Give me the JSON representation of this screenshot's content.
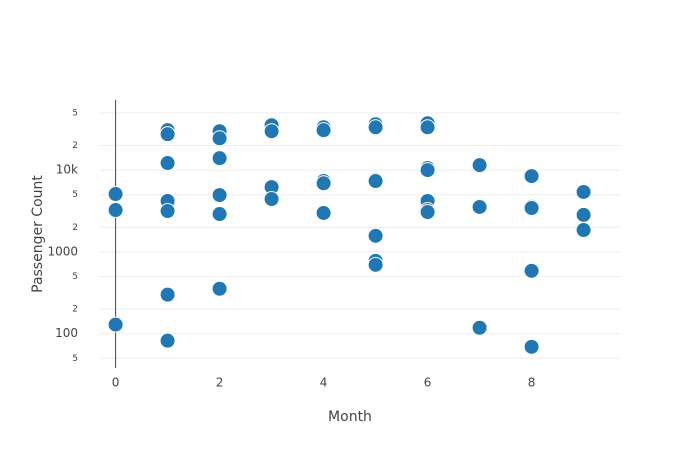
{
  "chart_data": {
    "type": "scatter",
    "xlabel": "Month",
    "ylabel": "Passenger Count",
    "color": "#1f77b4",
    "ylog": true,
    "ygrid": true,
    "xzeroline": true,
    "xlim": [
      -0.3,
      9.7
    ],
    "ylim": [
      38,
      72000
    ],
    "xticks": [
      0,
      2,
      4,
      6,
      8
    ],
    "yticks": [
      {
        "value": 50,
        "label": "5"
      },
      100,
      {
        "value": 200,
        "label": "2"
      },
      {
        "value": 500,
        "label": "5"
      },
      1000,
      {
        "value": 2000,
        "label": "2"
      },
      {
        "value": 5000,
        "label": "5"
      },
      {
        "value": 10000,
        "label": "10k"
      },
      {
        "value": 20000,
        "label": "2"
      },
      {
        "value": 50000,
        "label": "5"
      }
    ],
    "x": [
      0,
      0,
      0,
      1,
      1,
      1,
      1,
      1,
      1,
      1,
      2,
      2,
      2,
      2,
      2,
      2,
      3,
      3,
      3,
      3,
      4,
      4,
      4,
      4,
      4,
      5,
      5,
      5,
      5,
      5,
      5,
      5,
      6,
      6,
      6,
      6,
      6,
      6,
      6,
      7,
      7,
      7,
      8,
      8,
      8,
      8,
      8,
      9,
      9,
      9
    ],
    "y": [
      5100,
      3250,
      129,
      30800,
      27500,
      12200,
      4190,
      3160,
      300,
      82,
      29900,
      24500,
      14000,
      4950,
      2900,
      354,
      35400,
      29900,
      6200,
      4430,
      33400,
      30800,
      7350,
      6900,
      2990,
      36400,
      33400,
      7560,
      7350,
      1570,
      776,
      694,
      37400,
      33400,
      10600,
      10000,
      4190,
      3250,
      3070,
      11500,
      3540,
      118,
      8450,
      3560,
      3440,
      586,
      69,
      5400,
      2830,
      1850
    ]
  }
}
